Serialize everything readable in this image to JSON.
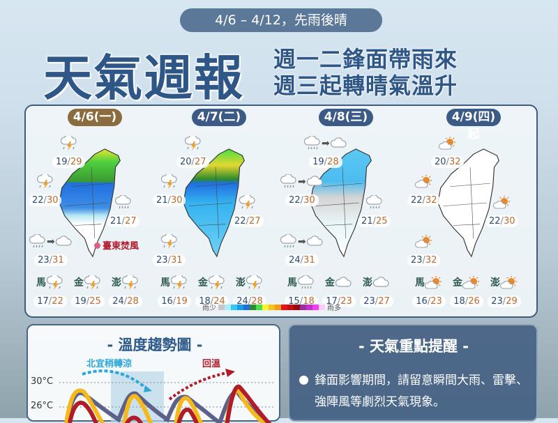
{
  "header": {
    "period": "4/6 – 4/12，先雨後晴",
    "title": "天氣週報",
    "subtitle_1": "週一二鋒面帶雨來",
    "subtitle_2": "週三起轉晴氣溫升"
  },
  "colors": {
    "pill_first": "#8b6c3e",
    "pill_other": "#3b5b86",
    "low_temp": "#2d4a70",
    "high_temp": "#c0692a",
    "rain_warm": "#b01d2a",
    "cool": "#2aa7d8"
  },
  "days": [
    {
      "date": "4/6(一)",
      "map": "rain-north-heavy",
      "spots": [
        {
          "pos": "north",
          "icon": "thunder",
          "low": "19",
          "high": "29"
        },
        {
          "pos": "west",
          "icon": "thunder",
          "low": "22",
          "high": "30"
        },
        {
          "pos": "east",
          "icon": "rain",
          "low": "21",
          "high": "27"
        },
        {
          "pos": "south",
          "icon": "rain",
          "then": "cloud",
          "low": "23",
          "high": "31"
        }
      ],
      "note": "臺東焚風",
      "islands": [
        {
          "name": "馬",
          "icon": "thunder",
          "low": "17",
          "high": "22"
        },
        {
          "name": "金",
          "icon": "thunder",
          "low": "19",
          "high": "25"
        },
        {
          "name": "澎",
          "icon": "thunder",
          "low": "24",
          "high": "28"
        }
      ]
    },
    {
      "date": "4/7(二)",
      "map": "rain-all",
      "spots": [
        {
          "pos": "north",
          "icon": "thunder",
          "low": "20",
          "high": "27"
        },
        {
          "pos": "west",
          "icon": "thunder",
          "low": "21",
          "high": "30"
        },
        {
          "pos": "east",
          "icon": "thunder",
          "low": "22",
          "high": "27"
        },
        {
          "pos": "south",
          "icon": "thunder",
          "low": "23",
          "high": "31"
        }
      ],
      "islands": [
        {
          "name": "馬",
          "icon": "thunder",
          "low": "16",
          "high": "19"
        },
        {
          "name": "金",
          "icon": "thunder",
          "low": "18",
          "high": "24"
        },
        {
          "name": "澎",
          "icon": "thunder",
          "low": "24",
          "high": "28"
        }
      ]
    },
    {
      "date": "4/8(三)",
      "map": "rain-light",
      "spots": [
        {
          "pos": "north",
          "icon": "rain",
          "then": "cloud",
          "low": "19",
          "high": "28"
        },
        {
          "pos": "west",
          "icon": "rain",
          "then": "cloud",
          "low": "22",
          "high": "30"
        },
        {
          "pos": "east",
          "icon": "rain",
          "low": "21",
          "high": "25"
        },
        {
          "pos": "south",
          "icon": "rain",
          "then": "cloud",
          "low": "24",
          "high": "31"
        }
      ],
      "islands": [
        {
          "name": "馬",
          "icon": "rain",
          "low": "15",
          "high": "18"
        },
        {
          "name": "金",
          "icon": "cloud",
          "low": "17",
          "high": "23"
        },
        {
          "name": "澎",
          "icon": "cloud",
          "low": "23",
          "high": "27"
        }
      ]
    },
    {
      "date": "4/9(四)起",
      "map": "dry",
      "spots": [
        {
          "pos": "north",
          "icon": "sun-cloud",
          "low": "20",
          "high": "32"
        },
        {
          "pos": "west",
          "icon": "sun-cloud",
          "low": "22",
          "high": "32"
        },
        {
          "pos": "east",
          "icon": "sun-cloud",
          "low": "22",
          "high": "30"
        },
        {
          "pos": "south",
          "icon": "sun-cloud",
          "low": "23",
          "high": "32"
        }
      ],
      "islands": [
        {
          "name": "馬",
          "icon": "sun-cloud",
          "low": "16",
          "high": "23"
        },
        {
          "name": "金",
          "icon": "sun-cloud",
          "low": "18",
          "high": "26"
        },
        {
          "name": "澎",
          "icon": "sun-cloud",
          "low": "23",
          "high": "29"
        }
      ]
    }
  ],
  "legend": {
    "less": "雨少",
    "more": "雨多",
    "colors": [
      "#c8c8c8",
      "#a9eefc",
      "#35c6f4",
      "#139ee6",
      "#1f6fe0",
      "#2e8b2e",
      "#48e043",
      "#f7f32c",
      "#f8c21d",
      "#f39a17",
      "#e8121a",
      "#c50d12",
      "#9b0a0b",
      "#9b2aa4",
      "#c22fd0",
      "#f43ef5",
      "#fbcdf8"
    ]
  },
  "trend": {
    "title": "- 溫度趨勢圖 -",
    "cool_note": "北宜稍轉涼",
    "warm_note": "回溫",
    "y_labels": [
      "30°C",
      "26°C"
    ]
  },
  "tips": {
    "title": "- 天氣重點提醒 -",
    "items": [
      "鋒面影響期間，請留意瞬間大雨、雷擊、強陣風等劇烈天氣現象。"
    ]
  }
}
